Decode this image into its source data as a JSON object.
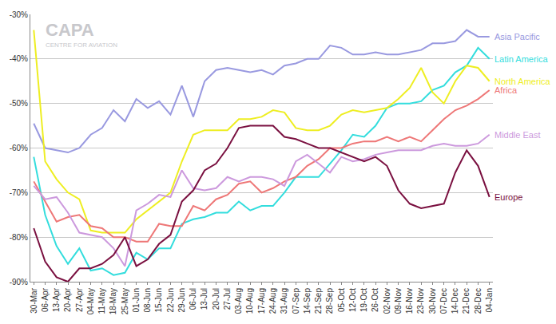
{
  "chart_data": {
    "type": "line",
    "annotations": [
      "CAPA",
      "CENTRE FOR AVIATION"
    ],
    "categories": [
      "30-Mar",
      "06-Apr",
      "13-Apr",
      "20-Apr",
      "27-Apr",
      "04-May",
      "11-May",
      "18-May",
      "25-May",
      "01-Jun",
      "08-Jun",
      "15-Jun",
      "22-Jun",
      "29-Jun",
      "06-Jul",
      "13-Jul",
      "20-Jul",
      "27-Jul",
      "03-Aug",
      "10-Aug",
      "17-Aug",
      "24-Aug",
      "31-Aug",
      "07-Sep",
      "14-Sep",
      "21-Sep",
      "28-Sep",
      "05-Oct",
      "12-Oct",
      "19-Oct",
      "26-Oct",
      "02-Nov",
      "09-Nov",
      "16-Nov",
      "23-Nov",
      "30-Nov",
      "07-Dec",
      "14-Dec",
      "21-Dec",
      "28-Dec",
      "04-Jan"
    ],
    "series": [
      {
        "name": "Asia Pacific",
        "color": "#9999e0",
        "values": [
          -54.5,
          -60,
          -60.5,
          -61,
          -60,
          -57,
          -55.5,
          -51.5,
          -54,
          -49,
          -51,
          -49.5,
          -52.5,
          -46,
          -53,
          -45,
          -42.5,
          -42,
          -42.5,
          -43,
          -42.5,
          -43.5,
          -41.5,
          -41,
          -40,
          -40,
          -37,
          -37.5,
          -39,
          -39,
          -38.5,
          -39,
          -39,
          -38.5,
          -38,
          -36.5,
          -36.5,
          -36,
          -33.5,
          -35,
          -35
        ]
      },
      {
        "name": "Latin America",
        "color": "#33dddd",
        "values": [
          -62,
          -75,
          -82,
          -86,
          -82.5,
          -87.5,
          -87,
          -88.5,
          -88,
          -83.5,
          -85,
          -82.5,
          -82.5,
          -77,
          -76,
          -75.5,
          -74.5,
          -74.5,
          -72,
          -74,
          -73,
          -73,
          -70,
          -66.5,
          -66.5,
          -66.5,
          -63.5,
          -60.5,
          -57,
          -57.5,
          -55,
          -51,
          -50,
          -50,
          -49.5,
          -47,
          -46,
          -43,
          -41.5,
          -37.5,
          -40
        ]
      },
      {
        "name": "North America",
        "color": "#eeee22",
        "values": [
          -33.5,
          -63,
          -67,
          -70,
          -71.5,
          -78.5,
          -79,
          -79,
          -79,
          -76,
          -74,
          -72,
          -70,
          -63,
          -57,
          -56,
          -56,
          -56,
          -53.5,
          -53.5,
          -53,
          -51.5,
          -52,
          -55.5,
          -56,
          -56,
          -55,
          -52.5,
          -51.5,
          -52,
          -51.5,
          -51,
          -49,
          -46.5,
          -42,
          -47.5,
          -50,
          -45,
          -41.5,
          -42,
          -45
        ]
      },
      {
        "name": "Africa",
        "color": "#ee7777",
        "values": [
          -67.5,
          -72,
          -76.5,
          -75.5,
          -75,
          -77.5,
          -78,
          -80,
          -80,
          -81,
          -81,
          -77,
          -77.5,
          -77.5,
          -73,
          -74,
          -71.5,
          -70.5,
          -68,
          -67.5,
          -70,
          -69,
          -67.5,
          -66.5,
          -64,
          -62.5,
          -60,
          -60,
          -59,
          -58.5,
          -58.5,
          -57.5,
          -58.5,
          -57.5,
          -58.5,
          -56,
          -53.5,
          -51.5,
          -50.5,
          -49,
          -47
        ]
      },
      {
        "name": "Middle East",
        "color": "#cc99dd",
        "values": [
          -68.5,
          -71.5,
          -71,
          -74.5,
          -79,
          -79.5,
          -80,
          -82.5,
          -86.5,
          -74,
          -72.5,
          -70.5,
          -71,
          -65,
          -69,
          -69.5,
          -69,
          -66.5,
          -67.5,
          -66.5,
          -66.5,
          -67,
          -68.5,
          -63,
          -61.5,
          -63.5,
          -65.5,
          -62,
          -63,
          -62.5,
          -61.5,
          -61,
          -60.5,
          -60.5,
          -60.5,
          -59.5,
          -59,
          -59.5,
          -59.5,
          -59,
          -57
        ]
      },
      {
        "name": "Europe",
        "color": "#7a1040",
        "values": [
          -78,
          -85.5,
          -89,
          -90,
          -87,
          -87,
          -86,
          -84,
          -80,
          -86.5,
          -85,
          -81.5,
          -79.5,
          -72,
          -69.5,
          -65,
          -63.5,
          -60,
          -55.5,
          -55,
          -55,
          -55,
          -57.5,
          -58,
          -59,
          -60,
          -60,
          -61,
          -62,
          -63,
          -62,
          -64,
          -69.5,
          -72.5,
          -73.5,
          -73,
          -72.5,
          -65.5,
          -60.5,
          -64,
          -71
        ]
      }
    ],
    "ylim": [
      -90,
      -30
    ],
    "yticks": [
      {
        "value": -90,
        "label": "-90%"
      },
      {
        "value": -80,
        "label": "-80%"
      },
      {
        "value": -70,
        "label": "-70%"
      },
      {
        "value": -60,
        "label": "-60%"
      },
      {
        "value": -50,
        "label": "-50%"
      },
      {
        "value": -40,
        "label": "-40%"
      },
      {
        "value": -30,
        "label": "-30%"
      }
    ],
    "grid": true
  }
}
